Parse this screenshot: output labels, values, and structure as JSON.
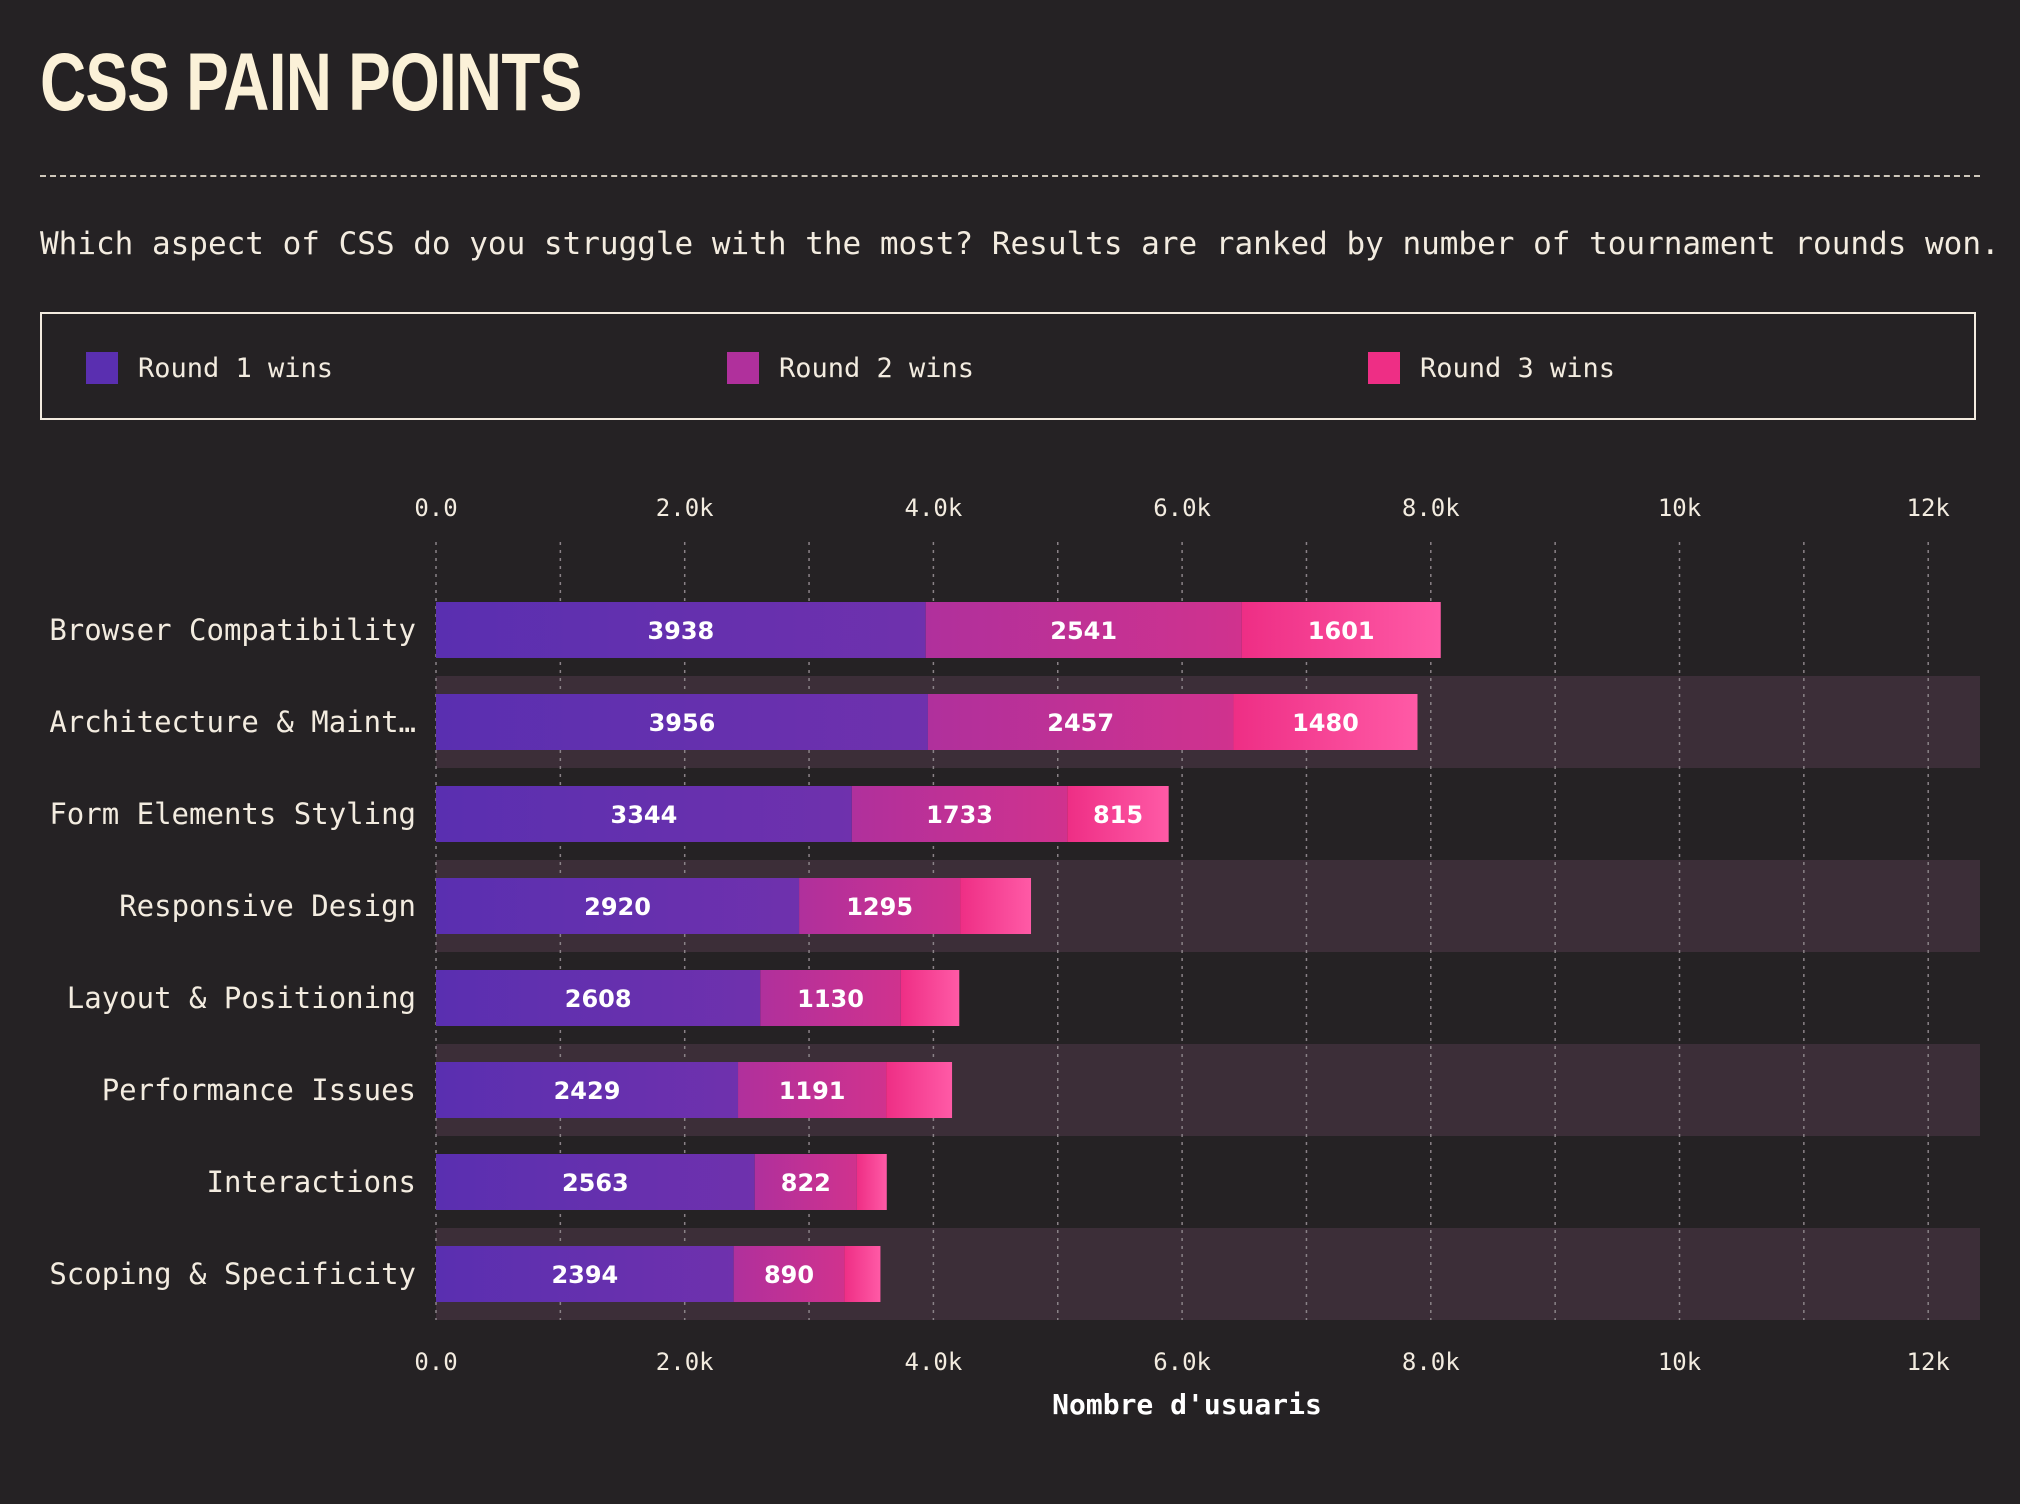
{
  "page": {
    "title": "CSS PAIN POINTS",
    "subtitle": "Which aspect of CSS do you struggle with the most? Results are ranked by number of tournament rounds won."
  },
  "legend": {
    "items": [
      {
        "label": "Round 1 wins",
        "color": "#5a2fb0"
      },
      {
        "label": "Round 2 wins",
        "color": "#b0309c"
      },
      {
        "label": "Round 3 wins",
        "color": "#ee2e85"
      }
    ]
  },
  "chart_data": {
    "type": "bar",
    "orientation": "horizontal",
    "stacked": true,
    "categories": [
      "Browser Compatibility",
      "Architecture & Maint…",
      "Form Elements Styling",
      "Responsive Design",
      "Layout & Positioning",
      "Performance Issues",
      "Interactions",
      "Scoping & Specificity"
    ],
    "series": [
      {
        "name": "Round 1 wins",
        "values": [
          3938,
          3956,
          3344,
          2920,
          2608,
          2429,
          2563,
          2394
        ],
        "colors": [
          "#5a2fb0",
          "#6f31ad"
        ]
      },
      {
        "name": "Round 2 wins",
        "values": [
          2541,
          2457,
          1733,
          1295,
          1130,
          1191,
          822,
          890
        ],
        "colors": [
          "#b0309c",
          "#d0328e"
        ]
      },
      {
        "name": "Round 3 wins",
        "values": [
          1601,
          1480,
          815,
          570,
          470,
          530,
          240,
          290
        ],
        "colors": [
          "#ee2e85",
          "#ff5aa6"
        ]
      }
    ],
    "value_labels_shown": [
      [
        true,
        true,
        true,
        true,
        true,
        true,
        true,
        true
      ],
      [
        true,
        true,
        true,
        true,
        true,
        true,
        true,
        true
      ],
      [
        true,
        true,
        true,
        false,
        false,
        false,
        false,
        false
      ]
    ],
    "xlim": [
      0,
      12400
    ],
    "xticks": [
      {
        "value": 0,
        "label": "0.0"
      },
      {
        "value": 2000,
        "label": "2.0k"
      },
      {
        "value": 4000,
        "label": "4.0k"
      },
      {
        "value": 6000,
        "label": "6.0k"
      },
      {
        "value": 8000,
        "label": "8.0k"
      },
      {
        "value": 10000,
        "label": "10k"
      },
      {
        "value": 12000,
        "label": "12k"
      }
    ],
    "minor_gridlines": [
      1000,
      3000,
      5000,
      7000,
      9000,
      11000
    ],
    "xlabel": "Nombre d'usuaris",
    "ylabel": "",
    "grid": true,
    "alternate_row_shading": "#3c2e38",
    "legend_position": "top"
  }
}
